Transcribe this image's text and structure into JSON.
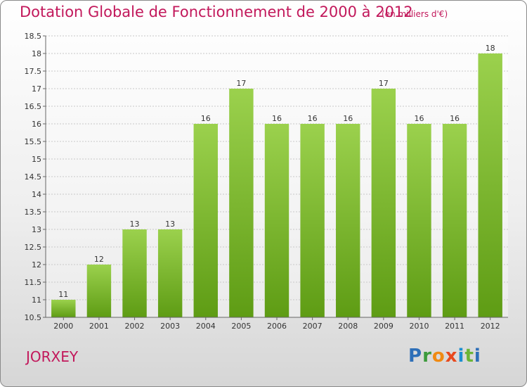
{
  "chart_data": {
    "type": "bar",
    "title": "Dotation Globale de Fonctionnement de 2000 à 2012",
    "subtitle": "(en milliers d'€)",
    "categories": [
      "2000",
      "2001",
      "2002",
      "2003",
      "2004",
      "2005",
      "2006",
      "2007",
      "2008",
      "2009",
      "2010",
      "2011",
      "2012"
    ],
    "values": [
      11,
      12,
      13,
      13,
      16,
      17,
      16,
      16,
      16,
      17,
      16,
      16,
      18
    ],
    "ylim": [
      10.5,
      18.5
    ],
    "yticks": [
      10.5,
      11,
      11.5,
      12,
      12.5,
      13,
      13.5,
      14,
      14.5,
      15,
      15.5,
      16,
      16.5,
      17,
      17.5,
      18,
      18.5
    ],
    "grid": true,
    "bar_colors": {
      "top": "#9bd14d",
      "bottom": "#5e9c14"
    }
  },
  "commune": "JORXEY",
  "brand": "Proxiti"
}
